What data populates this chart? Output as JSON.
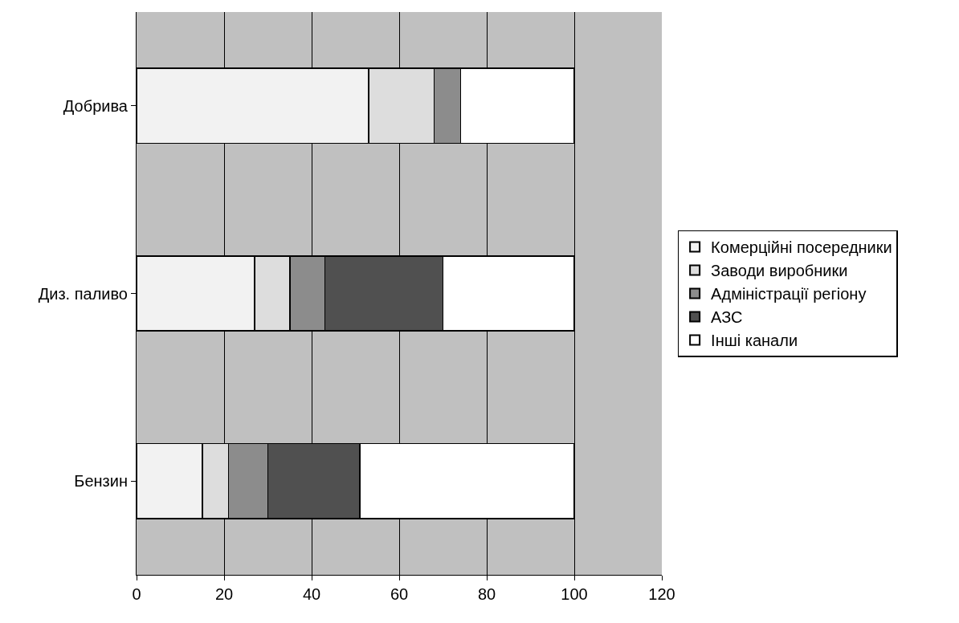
{
  "chart_data": {
    "type": "bar",
    "orientation": "horizontal",
    "stacked": true,
    "categories": [
      "Добрива",
      "Диз. паливо",
      "Бензин"
    ],
    "series": [
      {
        "name": "Комерційні посередники",
        "color": "#f2f2f2",
        "values": [
          53,
          27,
          15
        ]
      },
      {
        "name": "Заводи виробники",
        "color": "#dddddd",
        "values": [
          15,
          8,
          6
        ]
      },
      {
        "name": "Адміністрації регіону",
        "color": "#8c8c8c",
        "values": [
          6,
          8,
          9
        ]
      },
      {
        "name": "АЗС",
        "color": "#505050",
        "values": [
          0,
          27,
          21
        ]
      },
      {
        "name": "Інші канали",
        "color": "#ffffff",
        "values": [
          26,
          30,
          49
        ]
      }
    ],
    "xlim": [
      0,
      120
    ],
    "xticks": [
      0,
      20,
      40,
      60,
      80,
      100,
      120
    ],
    "grid": "x",
    "legend": "right"
  }
}
